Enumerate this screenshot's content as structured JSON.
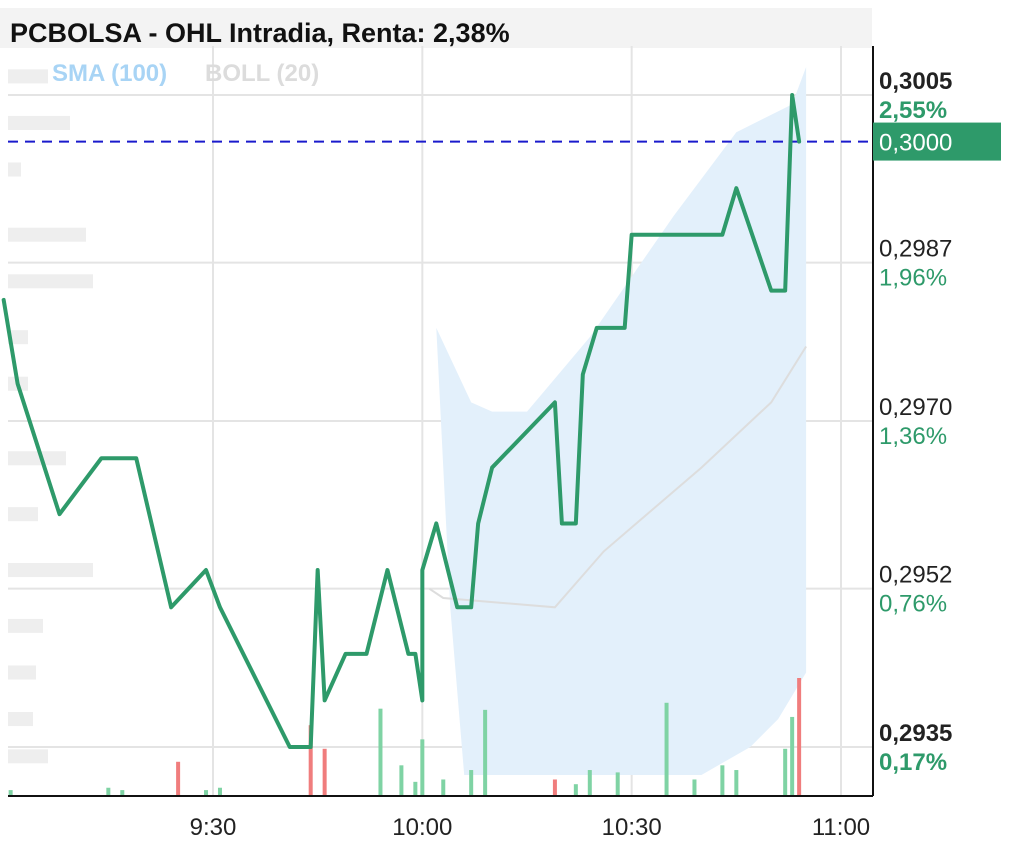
{
  "title": "PCBOLSA - OHL Intradia, Renta: 2,38%",
  "legend": [
    {
      "label": "SMA (100)",
      "color": "#a8d4f5"
    },
    {
      "label": "BOLL (20)",
      "color": "#dcdcdc"
    }
  ],
  "colors": {
    "price_line": "#2e9a6a",
    "bollinger_fill": "#e3f0fb",
    "volume_up": "#7fd3a4",
    "volume_down": "#f07d7d",
    "reference_line": "#1a1acc",
    "current_price_bg": "#2e9a6a"
  },
  "chart_data": {
    "type": "line",
    "title": "PCBOLSA - OHL Intradia, Renta: 2,38%",
    "x_ticks": [
      "9:30",
      "10:00",
      "10:30",
      "11:00"
    ],
    "x_range": [
      "9:00",
      "11:05"
    ],
    "ylim": [
      0.2929,
      0.3012
    ],
    "y_ticks": [
      {
        "value": 0.3005,
        "label": "0,3005",
        "pct": "2,55%",
        "bold": true
      },
      {
        "value": 0.2987,
        "label": "0,2987",
        "pct": "1,96%",
        "bold": false
      },
      {
        "value": 0.297,
        "label": "0,2970",
        "pct": "1,36%",
        "bold": false
      },
      {
        "value": 0.2952,
        "label": "0,2952",
        "pct": "0,76%",
        "bold": false
      },
      {
        "value": 0.2935,
        "label": "0,2935",
        "pct": "0,17%",
        "bold": true
      }
    ],
    "current_price": {
      "value": 0.3,
      "label": "0,3000"
    },
    "price_series": {
      "name": "OHL",
      "points": [
        [
          "9:00",
          0.2983
        ],
        [
          "9:02",
          0.2974
        ],
        [
          "9:08",
          0.296
        ],
        [
          "9:14",
          0.2966
        ],
        [
          "9:19",
          0.2966
        ],
        [
          "9:24",
          0.295
        ],
        [
          "9:29",
          0.2954
        ],
        [
          "9:31",
          0.295
        ],
        [
          "9:41",
          0.2935
        ],
        [
          "9:44",
          0.2935
        ],
        [
          "9:45",
          0.2954
        ],
        [
          "9:46",
          0.294
        ],
        [
          "9:49",
          0.2945
        ],
        [
          "9:52",
          0.2945
        ],
        [
          "9:55",
          0.2954
        ],
        [
          "9:58",
          0.2945
        ],
        [
          "9:59",
          0.2945
        ],
        [
          "10:00",
          0.294
        ],
        [
          "10:00",
          0.2954
        ],
        [
          "10:02",
          0.2959
        ],
        [
          "10:05",
          0.295
        ],
        [
          "10:07",
          0.295
        ],
        [
          "10:08",
          0.2959
        ],
        [
          "10:10",
          0.2965
        ],
        [
          "10:19",
          0.2972
        ],
        [
          "10:20",
          0.2959
        ],
        [
          "10:22",
          0.2959
        ],
        [
          "10:23",
          0.2975
        ],
        [
          "10:25",
          0.298
        ],
        [
          "10:29",
          0.298
        ],
        [
          "10:30",
          0.299
        ],
        [
          "10:43",
          0.299
        ],
        [
          "10:45",
          0.2995
        ],
        [
          "10:50",
          0.2984
        ],
        [
          "10:52",
          0.2984
        ],
        [
          "10:53",
          0.3005
        ],
        [
          "10:54",
          0.3
        ]
      ]
    },
    "boll_mid": {
      "name": "BOLL (20)",
      "points": [
        [
          "10:01",
          0.2952
        ],
        [
          "10:03",
          0.2951
        ],
        [
          "10:19",
          0.295
        ],
        [
          "10:26",
          0.2956
        ],
        [
          "10:40",
          0.2965
        ],
        [
          "10:50",
          0.2972
        ],
        [
          "10:55",
          0.2978
        ]
      ]
    },
    "boll_upper": {
      "points": [
        [
          "10:02",
          0.298
        ],
        [
          "10:07",
          0.2972
        ],
        [
          "10:10",
          0.2971
        ],
        [
          "10:15",
          0.2971
        ],
        [
          "10:24",
          0.2979
        ],
        [
          "10:36",
          0.2992
        ],
        [
          "10:45",
          0.3001
        ],
        [
          "10:53",
          0.3004
        ],
        [
          "10:55",
          0.3008
        ]
      ]
    },
    "boll_lower": {
      "points": [
        [
          "10:04",
          0.295
        ],
        [
          "10:06",
          0.2932
        ],
        [
          "10:22",
          0.2932
        ],
        [
          "10:40",
          0.2932
        ],
        [
          "10:47",
          0.2935
        ],
        [
          "10:51",
          0.2938
        ],
        [
          "10:55",
          0.2943
        ]
      ]
    },
    "volume_bars": [
      [
        "9:01",
        0.05,
        "up"
      ],
      [
        "9:15",
        0.07,
        "up"
      ],
      [
        "9:17",
        0.05,
        "up"
      ],
      [
        "9:25",
        0.29,
        "down"
      ],
      [
        "9:29",
        0.05,
        "up"
      ],
      [
        "9:31",
        0.07,
        "up"
      ],
      [
        "9:44",
        0.6,
        "down"
      ],
      [
        "9:46",
        0.4,
        "down"
      ],
      [
        "9:54",
        0.74,
        "up"
      ],
      [
        "9:57",
        0.26,
        "up"
      ],
      [
        "9:59",
        0.12,
        "up"
      ],
      [
        "10:00",
        0.48,
        "up"
      ],
      [
        "10:03",
        0.14,
        "up"
      ],
      [
        "10:07",
        0.22,
        "up"
      ],
      [
        "10:09",
        0.73,
        "up"
      ],
      [
        "10:19",
        0.14,
        "down"
      ],
      [
        "10:22",
        0.1,
        "up"
      ],
      [
        "10:24",
        0.22,
        "up"
      ],
      [
        "10:28",
        0.2,
        "up"
      ],
      [
        "10:35",
        0.79,
        "up"
      ],
      [
        "10:39",
        0.14,
        "up"
      ],
      [
        "10:43",
        0.26,
        "up"
      ],
      [
        "10:45",
        0.22,
        "up"
      ],
      [
        "10:52",
        0.4,
        "up"
      ],
      [
        "10:53",
        0.67,
        "up"
      ],
      [
        "10:54",
        1.0,
        "down"
      ]
    ],
    "volume_profile": [
      [
        0.3007,
        40
      ],
      [
        0.3002,
        62
      ],
      [
        0.2997,
        13
      ],
      [
        0.299,
        78
      ],
      [
        0.2985,
        85
      ],
      [
        0.2979,
        20
      ],
      [
        0.2974,
        20
      ],
      [
        0.2966,
        58
      ],
      [
        0.296,
        30
      ],
      [
        0.2954,
        85
      ],
      [
        0.2948,
        35
      ],
      [
        0.2943,
        28
      ],
      [
        0.2938,
        25
      ],
      [
        0.2934,
        40
      ]
    ],
    "grid": true,
    "y_axis_position": "right",
    "legend_position": "top-left"
  }
}
